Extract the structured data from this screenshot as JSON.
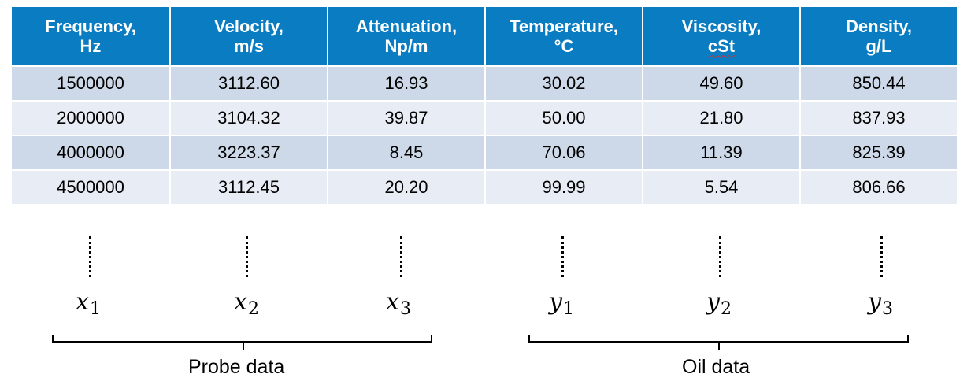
{
  "table": {
    "headers": [
      {
        "line1": "Frequency,",
        "line2": "Hz"
      },
      {
        "line1": "Velocity,",
        "line2": "m/s"
      },
      {
        "line1": "Attenuation,",
        "line2": "Np/m"
      },
      {
        "line1": "Temperature,",
        "line2": "°C"
      },
      {
        "line1": "Viscosity,",
        "line2": "cSt"
      },
      {
        "line1": "Density,",
        "line2": "g/L"
      }
    ],
    "rows": [
      [
        "1500000",
        "3112.60",
        "16.93",
        "30.02",
        "49.60",
        "850.44"
      ],
      [
        "2000000",
        "3104.32",
        "39.87",
        "50.00",
        "21.80",
        "837.93"
      ],
      [
        "4000000",
        "3223.37",
        "8.45",
        "70.06",
        "11.39",
        "825.39"
      ],
      [
        "4500000",
        "3112.45",
        "20.20",
        "99.99",
        "5.54",
        "806.66"
      ]
    ]
  },
  "variables": [
    {
      "symbol": "x",
      "index": "1"
    },
    {
      "symbol": "x",
      "index": "2"
    },
    {
      "symbol": "x",
      "index": "3"
    },
    {
      "symbol": "y",
      "index": "1"
    },
    {
      "symbol": "y",
      "index": "2"
    },
    {
      "symbol": "y",
      "index": "3"
    }
  ],
  "groups": {
    "probe": "Probe data",
    "oil": "Oil data"
  },
  "colors": {
    "header_bg": "#0a7cc1",
    "row_dark": "#cdd9e8",
    "row_light": "#e8ecf5"
  }
}
